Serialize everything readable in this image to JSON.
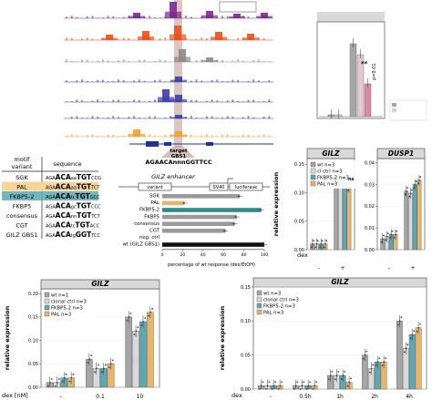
{
  "colors": {
    "wt": "#a6a6a6",
    "clonal": "#d9d9d9",
    "fkbp5": "#5aa9b4",
    "pal": "#e8b56a",
    "track_purple": "#7b2a8c",
    "track_orange": "#e8501e",
    "track_blue": "#3a3fa8",
    "track_gold": "#f0a030",
    "highlight": "#c9a7a0"
  },
  "browser": {
    "target_label": "target",
    "gbs_label": "GBS1",
    "gbs_sequence": "AGAACAnnnGGTTCC"
  },
  "top_inset": {
    "stat_stars": "**",
    "stat_p": "p=0.01",
    "y_ticks": [
      "",
      "",
      "",
      "",
      ""
    ]
  },
  "motif_table": {
    "header_variant": "motif\nvariant",
    "header_sequence": "sequence",
    "rows": [
      {
        "name": "SGK",
        "pre": "AGA",
        "core1": "ACA",
        "mid": "aa",
        "core2": "TGT",
        "post": "CCG",
        "highlight": ""
      },
      {
        "name": "PAL",
        "pre": "AGA",
        "core1": "ACA",
        "mid": "aa",
        "core2": "TGT",
        "post": "TCT",
        "highlight": "pal"
      },
      {
        "name": "FKBP5-2",
        "pre": "AGA",
        "core1": "ACA",
        "mid": "tc",
        "core2": "TGT",
        "post": "GCC",
        "highlight": "fkbp5"
      },
      {
        "name": "FKBP5",
        "pre": "AGA",
        "core1": "ACA",
        "mid": "gc",
        "core2": "TGT",
        "post": "CCC",
        "highlight": ""
      },
      {
        "name": "consensus",
        "pre": "AGA",
        "core1": "ACA",
        "mid": "nn",
        "core2": "TGT",
        "post": "TCT",
        "highlight": ""
      },
      {
        "name": "CGT",
        "pre": "AGA",
        "core1": "ACA",
        "mid": "tc",
        "core2": "TGT",
        "post": "ACC",
        "highlight": ""
      },
      {
        "name": "GILZ GBS1",
        "pre": "AGA",
        "core1": "ACA",
        "mid": "tg",
        "core2": "GGT",
        "post": "TCC",
        "highlight": ""
      }
    ]
  },
  "enhancer_panel": {
    "title": "GILZ enhancer",
    "box_variant": "variant",
    "box_sv40": "SV40",
    "box_luciferase": "luciferase",
    "xlabel": "percentage of wt response (dex/EtOH)",
    "x_ticks": [
      "0",
      "20",
      "40",
      "60",
      "80",
      "100"
    ]
  },
  "chart_data": [
    {
      "id": "reporter",
      "type": "bar",
      "orientation": "horizontal",
      "categories": [
        "SGK",
        "PAL",
        "FKBP5-2",
        "FKBP5",
        "consensus",
        "CGT",
        "neg. ctrl",
        "wt (GILZ GBS1)"
      ],
      "values": [
        76,
        22,
        97,
        73,
        71,
        62,
        0,
        100
      ],
      "xlim": [
        0,
        100
      ],
      "xlabel": "percentage of wt response (dex/EtOH)"
    },
    {
      "id": "gilz-dusp1",
      "type": "bar",
      "panels": [
        "GILZ",
        "DUSP1"
      ],
      "ylabel": "relative expression",
      "xlabel": "dex",
      "categories": [
        "-",
        "+"
      ],
      "legend": [
        "wt n=3",
        "cl ctrl n=3",
        "FKBP5-2 n=3",
        "PAL n=3"
      ],
      "annotation": "ns",
      "series_GILZ": [
        {
          "name": "wt n=3",
          "values": [
            0.01,
            0.13
          ]
        },
        {
          "name": "cl ctrl n=3",
          "values": [
            0.01,
            0.12
          ]
        },
        {
          "name": "FKBP5-2 n=3",
          "values": [
            0.01,
            0.13
          ]
        },
        {
          "name": "PAL n=3",
          "values": [
            0.01,
            0.11
          ]
        }
      ],
      "ylim_GILZ": [
        0,
        0.16
      ],
      "y_ticks_GILZ": [
        "0.00",
        "0.05",
        "0.10",
        "0.15"
      ],
      "series_DUSP1": [
        {
          "name": "wt n=3",
          "values": [
            0.005,
            0.027
          ]
        },
        {
          "name": "cl ctrl n=3",
          "values": [
            0.006,
            0.026
          ]
        },
        {
          "name": "FKBP5-2 n=3",
          "values": [
            0.007,
            0.03
          ]
        },
        {
          "name": "PAL n=3",
          "values": [
            0.007,
            0.032
          ]
        }
      ],
      "ylim_DUSP1": [
        0,
        0.042
      ],
      "y_ticks_DUSP1": [
        "0.00",
        "0.01",
        "0.02",
        "0.03",
        "0.04"
      ]
    },
    {
      "id": "gilz-dose",
      "type": "bar",
      "title": "GILZ",
      "ylabel": "relative expression",
      "xlabel": "dex [nM]",
      "categories": [
        "-",
        "0.1",
        "10"
      ],
      "legend": [
        "wt n=1",
        "clonal ctrl n=3",
        "FKBP5-2 n=3",
        "PAL n=3"
      ],
      "series": [
        {
          "name": "wt n=1",
          "values": [
            0.01,
            0.06,
            0.15
          ]
        },
        {
          "name": "clonal ctrl n=3",
          "values": [
            0.01,
            0.04,
            0.12
          ]
        },
        {
          "name": "FKBP5-2 n=3",
          "values": [
            0.02,
            0.04,
            0.14
          ]
        },
        {
          "name": "PAL n=3",
          "values": [
            0.02,
            0.05,
            0.16
          ]
        }
      ],
      "ylim": [
        0,
        0.21
      ],
      "y_ticks": [
        "0.00",
        "0.05",
        "0.10",
        "0.15",
        "0.20"
      ]
    },
    {
      "id": "gilz-time",
      "type": "bar",
      "title": "GILZ",
      "ylabel": "relative expression",
      "xlabel": "dex",
      "categories": [
        "-",
        "0.5h",
        "1h",
        "2h",
        "4h"
      ],
      "legend": [
        "wt n=3",
        "clonal ctrl n=3",
        "FKBP5-2 n=3",
        "PAL n=3"
      ],
      "series": [
        {
          "name": "wt n=3",
          "values": [
            0.005,
            0.005,
            0.02,
            0.05,
            0.1
          ]
        },
        {
          "name": "clonal ctrl n=3",
          "values": [
            0.005,
            0.005,
            0.02,
            0.03,
            0.06
          ]
        },
        {
          "name": "FKBP5-2 n=3",
          "values": [
            0.005,
            0.005,
            0.02,
            0.04,
            0.08
          ]
        },
        {
          "name": "PAL n=3",
          "values": [
            0.005,
            0.005,
            0.01,
            0.04,
            0.09
          ]
        }
      ],
      "ylim": [
        0,
        0.15
      ],
      "y_ticks": [
        "0.00",
        "0.05",
        "0.10",
        "0.15"
      ]
    }
  ]
}
